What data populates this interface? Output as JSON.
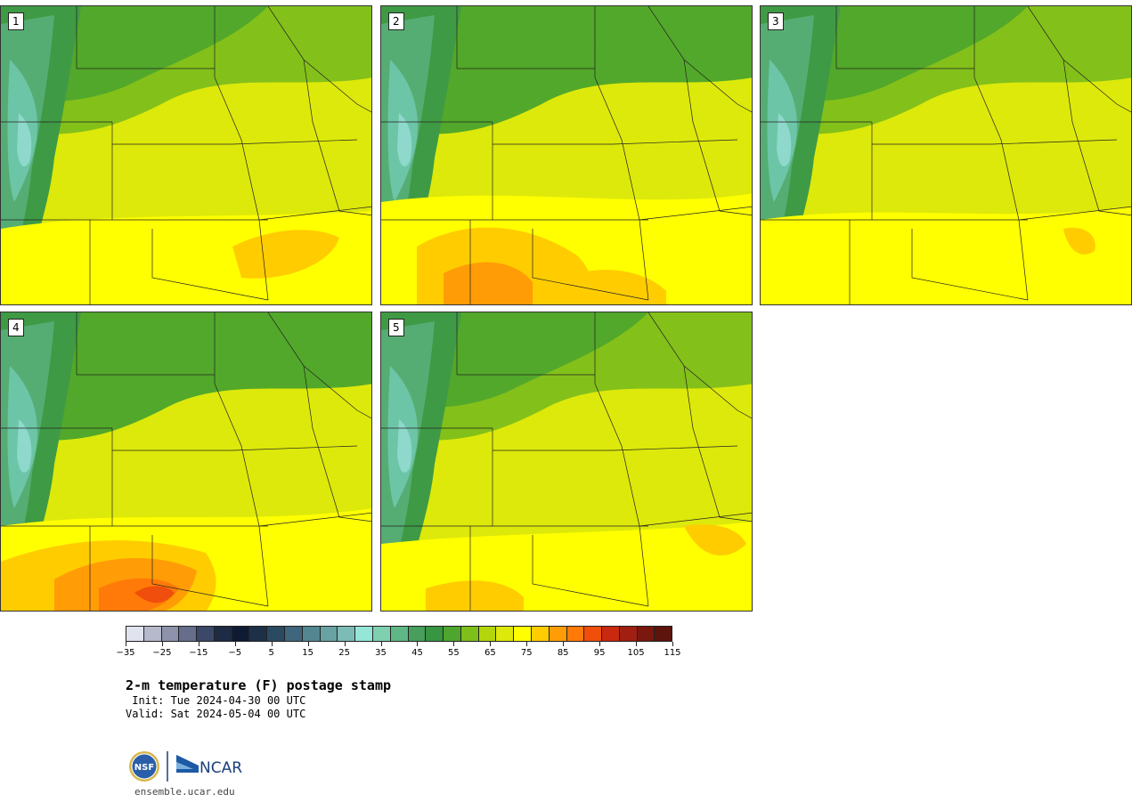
{
  "panels": [
    {
      "label": "1",
      "variant": 1
    },
    {
      "label": "2",
      "variant": 2
    },
    {
      "label": "3",
      "variant": 3
    },
    {
      "label": "4",
      "variant": 4
    },
    {
      "label": "5",
      "variant": 5
    }
  ],
  "colorbar": {
    "colors": [
      "#e1e4ee",
      "#b6b9cc",
      "#8e93ab",
      "#666e8c",
      "#3b4868",
      "#1d2b45",
      "#0f1b33",
      "#1c3148",
      "#2a4a62",
      "#3f667c",
      "#548691",
      "#69a2a3",
      "#7dbbb6",
      "#95e6d6",
      "#7fd0b0",
      "#5fb785",
      "#479e5d",
      "#389542",
      "#4ea62e",
      "#7ebf1a",
      "#b2d60b",
      "#dde90a",
      "#ffff00",
      "#ffcc00",
      "#ff9c06",
      "#ff7a08",
      "#ef4e0c",
      "#c8290f",
      "#a01f10",
      "#7a170f",
      "#5c140d"
    ],
    "tick_labels": [
      "−35",
      "−25",
      "−15",
      "−5",
      "5",
      "15",
      "25",
      "35",
      "45",
      "55",
      "65",
      "75",
      "85",
      "95",
      "105",
      "115"
    ]
  },
  "title": "2-m temperature (F) postage stamp",
  "init": " Init: Tue 2024-04-30 00 UTC",
  "valid": "Valid: Sat 2024-05-04 00 UTC",
  "logo": {
    "nsf_text": "NSF",
    "ncar_text": "NCAR"
  },
  "website": "ensemble.ucar.edu"
}
